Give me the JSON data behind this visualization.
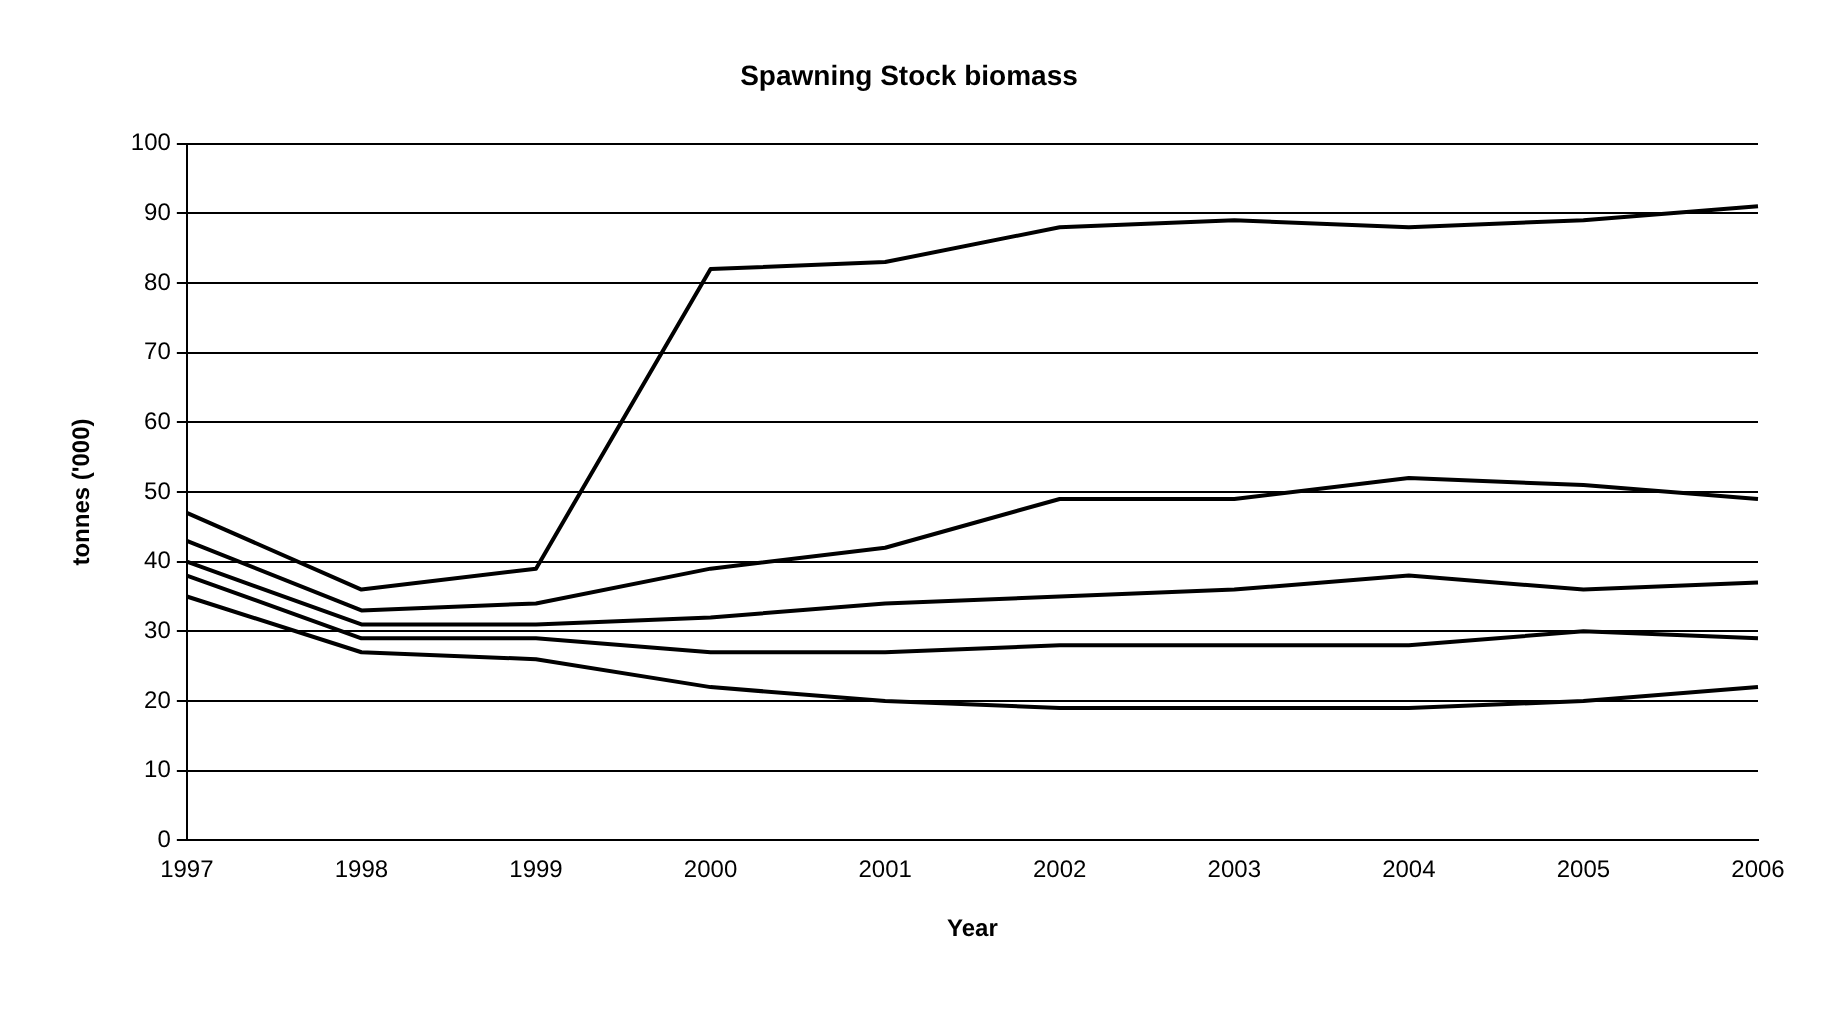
{
  "chart_data": {
    "type": "line",
    "title": "Spawning Stock biomass",
    "xlabel": "Year",
    "ylabel": "tonnes ('000)",
    "categories": [
      "1997",
      "1998",
      "1999",
      "2000",
      "2001",
      "2002",
      "2003",
      "2004",
      "2005",
      "2006"
    ],
    "series": [
      {
        "color": "#000000",
        "values": [
          47,
          36,
          39,
          82,
          83,
          88,
          89,
          88,
          89,
          91
        ]
      },
      {
        "color": "#000000",
        "values": [
          43,
          33,
          34,
          39,
          42,
          49,
          49,
          52,
          51,
          49
        ]
      },
      {
        "color": "#000000",
        "values": [
          40,
          31,
          31,
          32,
          34,
          35,
          36,
          38,
          36,
          37
        ]
      },
      {
        "color": "#000000",
        "values": [
          38,
          29,
          29,
          27,
          27,
          28,
          28,
          28,
          30,
          29
        ]
      },
      {
        "color": "#000000",
        "values": [
          35,
          27,
          26,
          22,
          20,
          19,
          19,
          19,
          20,
          22
        ]
      }
    ],
    "ylim": [
      0,
      100
    ],
    "yticks": [
      0,
      10,
      20,
      30,
      40,
      50,
      60,
      70,
      80,
      90,
      100
    ],
    "grid": "y",
    "legend": false,
    "marker": "none",
    "line_style": "solid"
  }
}
